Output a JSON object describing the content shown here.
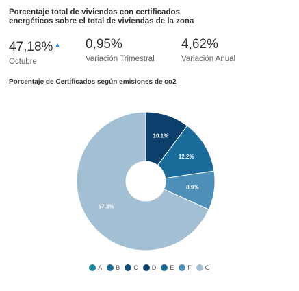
{
  "header": {
    "title": "Porcentaje total de viviendas con certificados energéticos sobre el total de viviendas de la zona"
  },
  "kpis": [
    {
      "value": "47,18%",
      "label": "Octubre",
      "trend_icon": "arrow-up-icon",
      "trend_glyph": "▲"
    },
    {
      "value": "0,95%",
      "label": "Variación Trimestral"
    },
    {
      "value": "4,62%",
      "label": "Variación Anual"
    }
  ],
  "chart_data": {
    "type": "pie",
    "title": "Porcentaje de Certificados según emisiones de co2",
    "categories": [
      "A",
      "B",
      "C",
      "D",
      "E",
      "F",
      "G"
    ],
    "values": [
      0,
      0,
      0,
      10.1,
      12.2,
      8.9,
      67.3
    ],
    "labels": [
      "",
      "",
      "",
      "10.1%",
      "12.2%",
      "8.9%",
      "67.3%"
    ],
    "colors": [
      "#1f8a9e",
      "#1d6f94",
      "#134e74",
      "#0c3f6c",
      "#1a6b99",
      "#4d8fb6",
      "#a3bfd3"
    ],
    "legend_position": "bottom"
  }
}
